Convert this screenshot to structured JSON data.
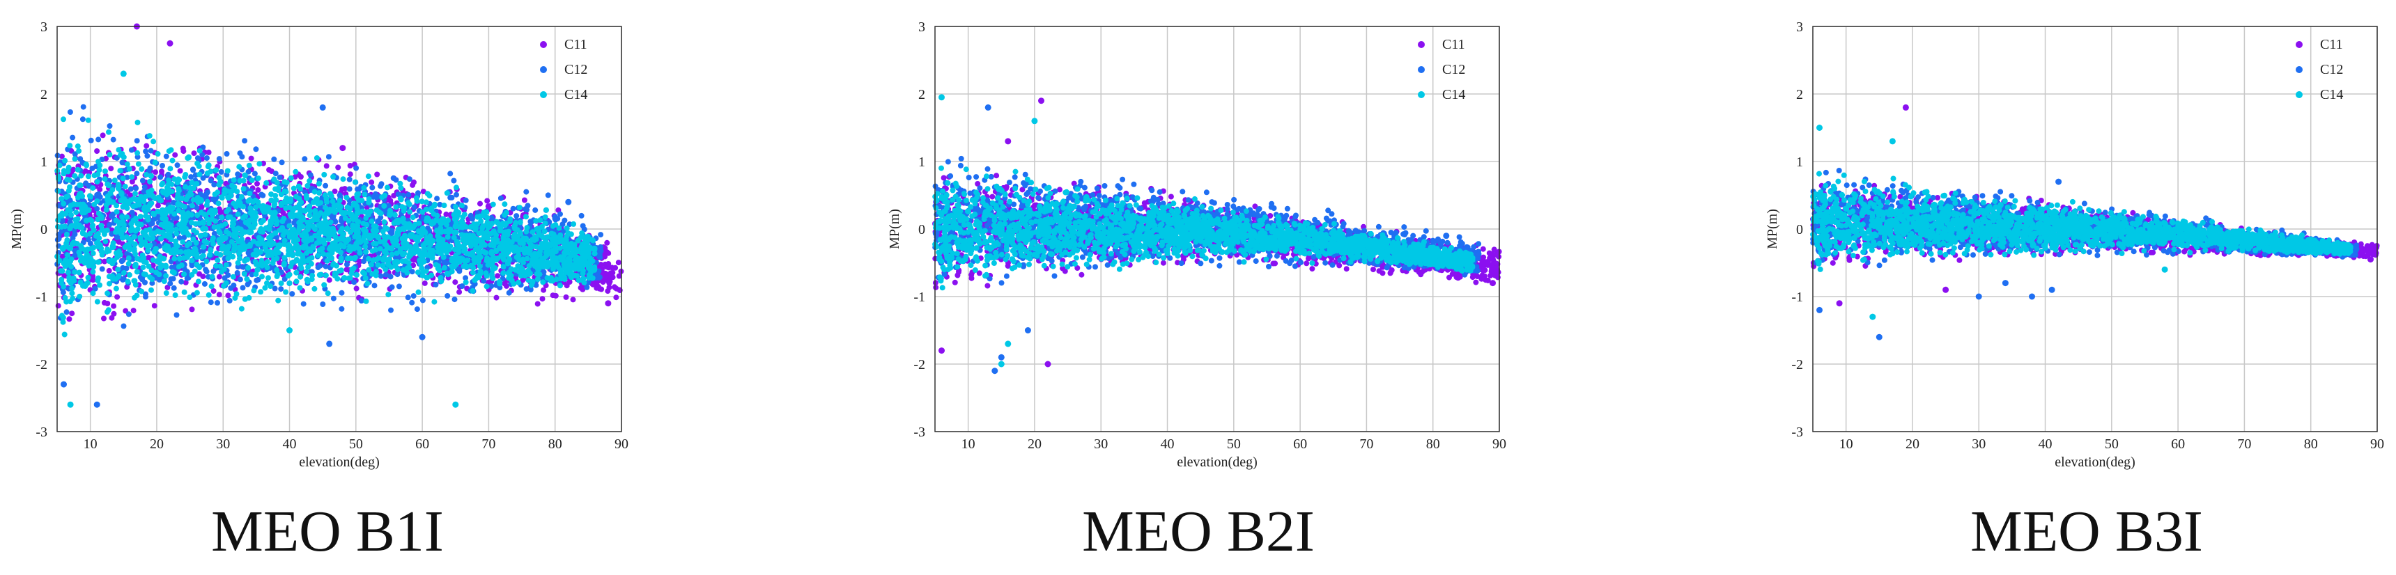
{
  "figure_captions": [
    "MEO B1I",
    "MEO B2I",
    "MEO B3I"
  ],
  "colors": {
    "C11": "#8b10f0",
    "C12": "#1f6ff2",
    "C14": "#00c8e6",
    "grid": "#c8c8c8",
    "axis": "#333333"
  },
  "chart_data": [
    {
      "type": "scatter",
      "title": "",
      "caption": "MEO B1I",
      "xlabel": "elevation(deg)",
      "ylabel": "MP(m)",
      "xlim": [
        5,
        90
      ],
      "ylim": [
        -3,
        3
      ],
      "xticks": [
        10,
        20,
        30,
        40,
        50,
        60,
        70,
        80,
        90
      ],
      "yticks": [
        3,
        2,
        1,
        0,
        -1,
        -2,
        -3
      ],
      "grid": true,
      "legend_position": "top-right",
      "series": [
        {
          "name": "C11",
          "color": "#8b10f0",
          "envelope": {
            "elevation": [
              5,
              20,
              40,
              60,
              80,
              90
            ],
            "upper": [
              1.9,
              1.6,
              1.2,
              0.9,
              0.5,
              -0.3
            ],
            "lower": [
              -1.9,
              -1.5,
              -1.2,
              -1.1,
              -1.2,
              -1.2
            ]
          },
          "outliers": [
            [
              17,
              3.0
            ],
            [
              22,
              2.75
            ],
            [
              87,
              -0.6
            ],
            [
              88,
              -1.1
            ],
            [
              48,
              1.2
            ]
          ]
        },
        {
          "name": "C12",
          "color": "#1f6ff2",
          "envelope": {
            "elevation": [
              5,
              20,
              40,
              60,
              80,
              87
            ],
            "upper": [
              2.1,
              1.7,
              1.3,
              1.0,
              0.6,
              0.1
            ],
            "lower": [
              -2.0,
              -1.6,
              -1.3,
              -1.3,
              -1.1,
              -1.0
            ]
          },
          "outliers": [
            [
              6,
              -2.3
            ],
            [
              11,
              -2.6
            ],
            [
              45,
              1.8
            ],
            [
              82,
              0.4
            ],
            [
              46,
              -1.7
            ],
            [
              60,
              -1.6
            ]
          ]
        },
        {
          "name": "C14",
          "color": "#00c8e6",
          "envelope": {
            "elevation": [
              5,
              20,
              40,
              60,
              80,
              86
            ],
            "upper": [
              1.8,
              1.5,
              1.1,
              0.8,
              0.3,
              0.0
            ],
            "lower": [
              -1.8,
              -1.4,
              -1.1,
              -1.1,
              -1.0,
              -0.9
            ]
          },
          "outliers": [
            [
              7,
              -2.6
            ],
            [
              15,
              2.3
            ],
            [
              65,
              -2.6
            ],
            [
              40,
              -1.5
            ]
          ]
        }
      ]
    },
    {
      "type": "scatter",
      "title": "",
      "caption": "MEO B2I",
      "xlabel": "elevation(deg)",
      "ylabel": "MP(m)",
      "xlim": [
        5,
        90
      ],
      "ylim": [
        -3,
        3
      ],
      "xticks": [
        10,
        20,
        30,
        40,
        50,
        60,
        70,
        80,
        90
      ],
      "yticks": [
        3,
        2,
        1,
        0,
        -1,
        -2,
        -3
      ],
      "grid": true,
      "legend_position": "top-right",
      "series": [
        {
          "name": "C11",
          "color": "#8b10f0",
          "envelope": {
            "elevation": [
              5,
              20,
              40,
              60,
              80,
              90
            ],
            "upper": [
              1.1,
              0.9,
              0.6,
              0.3,
              -0.1,
              -0.2
            ],
            "lower": [
              -1.2,
              -0.9,
              -0.6,
              -0.6,
              -0.8,
              -0.9
            ]
          },
          "outliers": [
            [
              6,
              -1.8
            ],
            [
              21,
              1.9
            ],
            [
              22,
              -2.0
            ],
            [
              88,
              -0.5
            ],
            [
              89,
              -0.8
            ],
            [
              16,
              1.3
            ]
          ]
        },
        {
          "name": "C12",
          "color": "#1f6ff2",
          "envelope": {
            "elevation": [
              5,
              20,
              40,
              60,
              80,
              87
            ],
            "upper": [
              1.2,
              1.0,
              0.7,
              0.4,
              0.0,
              -0.1
            ],
            "lower": [
              -1.1,
              -0.9,
              -0.6,
              -0.6,
              -0.7,
              -0.8
            ]
          },
          "outliers": [
            [
              14,
              -2.1
            ],
            [
              15,
              -1.9
            ],
            [
              13,
              1.8
            ],
            [
              82,
              -0.1
            ],
            [
              19,
              -1.5
            ]
          ]
        },
        {
          "name": "C14",
          "color": "#00c8e6",
          "envelope": {
            "elevation": [
              5,
              20,
              40,
              60,
              80,
              86
            ],
            "upper": [
              1.0,
              0.8,
              0.5,
              0.2,
              -0.2,
              -0.3
            ],
            "lower": [
              -1.0,
              -0.8,
              -0.5,
              -0.5,
              -0.6,
              -0.7
            ]
          },
          "outliers": [
            [
              6,
              1.95
            ],
            [
              15,
              -2.0
            ],
            [
              16,
              -1.7
            ],
            [
              20,
              1.6
            ]
          ]
        }
      ]
    },
    {
      "type": "scatter",
      "title": "",
      "caption": "MEO B3I",
      "xlabel": "elevation(deg)",
      "ylabel": "MP(m)",
      "xlim": [
        5,
        90
      ],
      "ylim": [
        -3,
        3
      ],
      "xticks": [
        10,
        20,
        30,
        40,
        50,
        60,
        70,
        80,
        90
      ],
      "yticks": [
        3,
        2,
        1,
        0,
        -1,
        -2,
        -3
      ],
      "grid": true,
      "legend_position": "top-right",
      "series": [
        {
          "name": "C11",
          "color": "#8b10f0",
          "envelope": {
            "elevation": [
              5,
              20,
              40,
              60,
              80,
              90
            ],
            "upper": [
              0.9,
              0.7,
              0.45,
              0.2,
              -0.1,
              -0.2
            ],
            "lower": [
              -0.8,
              -0.6,
              -0.45,
              -0.4,
              -0.45,
              -0.45
            ]
          },
          "outliers": [
            [
              19,
              1.8
            ],
            [
              9,
              -1.1
            ],
            [
              25,
              -0.9
            ],
            [
              89,
              -0.3
            ],
            [
              89,
              -0.45
            ]
          ]
        },
        {
          "name": "C12",
          "color": "#1f6ff2",
          "envelope": {
            "elevation": [
              5,
              20,
              40,
              60,
              80,
              87
            ],
            "upper": [
              1.0,
              0.8,
              0.5,
              0.25,
              -0.05,
              -0.2
            ],
            "lower": [
              -0.8,
              -0.6,
              -0.45,
              -0.4,
              -0.45,
              -0.45
            ]
          },
          "outliers": [
            [
              6,
              -1.2
            ],
            [
              15,
              -1.6
            ],
            [
              30,
              -1.0
            ],
            [
              38,
              -1.0
            ],
            [
              41,
              -0.9
            ],
            [
              34,
              -0.8
            ],
            [
              42,
              0.7
            ]
          ]
        },
        {
          "name": "C14",
          "color": "#00c8e6",
          "envelope": {
            "elevation": [
              5,
              20,
              40,
              60,
              80,
              86
            ],
            "upper": [
              0.9,
              0.7,
              0.45,
              0.2,
              -0.1,
              -0.2
            ],
            "lower": [
              -0.7,
              -0.55,
              -0.4,
              -0.35,
              -0.4,
              -0.4
            ]
          },
          "outliers": [
            [
              6,
              1.5
            ],
            [
              17,
              1.3
            ],
            [
              14,
              -1.3
            ],
            [
              58,
              -0.6
            ]
          ]
        }
      ]
    }
  ]
}
